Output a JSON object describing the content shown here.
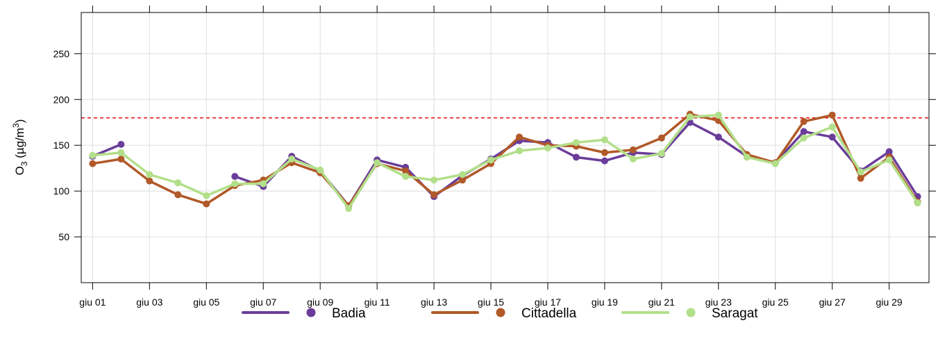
{
  "chart_data": {
    "type": "line",
    "ylabel": {
      "base": "O",
      "sub": "3",
      "unit_pre": " (µg/m",
      "unit_sup": "3",
      "unit_post": ")"
    },
    "xlabel": "",
    "x_tick_labels": [
      "giu 01",
      "giu 03",
      "giu 05",
      "giu 07",
      "giu 09",
      "giu 11",
      "giu 13",
      "giu 15",
      "giu 17",
      "giu 19",
      "giu 21",
      "giu 23",
      "giu 25",
      "giu 27",
      "giu 29"
    ],
    "x_tick_days": [
      1,
      3,
      5,
      7,
      9,
      11,
      13,
      15,
      17,
      19,
      21,
      23,
      25,
      27,
      29
    ],
    "xlim": [
      0.6,
      30.4
    ],
    "ylim": [
      0,
      295
    ],
    "y_ticks": [
      50,
      100,
      150,
      200,
      250
    ],
    "grid": true,
    "threshold": {
      "value": 180,
      "color": "#e31a1c",
      "style": "dashed"
    },
    "legend_position": "bottom",
    "series": [
      {
        "name": "Badia",
        "color": "#6a3d9a",
        "days": [
          1,
          2,
          6,
          7,
          8,
          9,
          10,
          11,
          12,
          13,
          14,
          15,
          16,
          17,
          18,
          19,
          20,
          21,
          22,
          23,
          24,
          25,
          26,
          27,
          28,
          29,
          30
        ],
        "values": [
          138,
          151,
          116,
          105,
          138,
          122,
          84,
          134,
          126,
          94,
          117,
          135,
          155,
          153,
          137,
          133,
          142,
          140,
          175,
          159,
          138,
          131,
          165,
          159,
          122,
          143,
          94
        ]
      },
      {
        "name": "Cittadella",
        "color": "#b15928",
        "days": [
          1,
          2,
          3,
          4,
          5,
          6,
          7,
          8,
          9,
          10,
          11,
          12,
          13,
          14,
          15,
          16,
          17,
          18,
          19,
          20,
          21,
          22,
          23,
          24,
          25,
          26,
          27,
          28,
          29,
          30
        ],
        "values": [
          130,
          135,
          111,
          96,
          86,
          106,
          112,
          131,
          120,
          84,
          130,
          122,
          96,
          112,
          130,
          159,
          150,
          149,
          142,
          145,
          158,
          184,
          177,
          140,
          131,
          176,
          183,
          114,
          137,
          88
        ]
      },
      {
        "name": "Saragat",
        "color": "#b2df8a",
        "days": [
          1,
          2,
          3,
          4,
          5,
          6,
          7,
          8,
          9,
          10,
          11,
          12,
          13,
          14,
          15,
          16,
          17,
          18,
          19,
          20,
          21,
          22,
          23,
          24,
          25,
          26,
          27,
          28,
          29,
          30
        ],
        "values": [
          139,
          142,
          118,
          109,
          95,
          108,
          108,
          135,
          123,
          81,
          131,
          116,
          112,
          118,
          134,
          144,
          147,
          153,
          156,
          135,
          141,
          181,
          183,
          137,
          130,
          158,
          170,
          121,
          134,
          87
        ]
      }
    ]
  }
}
